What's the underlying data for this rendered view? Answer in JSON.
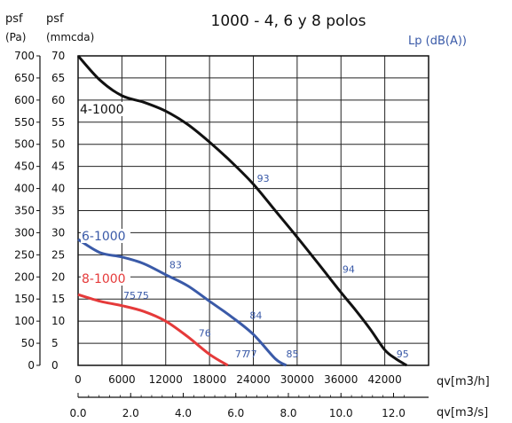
{
  "chart_data": {
    "type": "line",
    "title": "1000 - 4, 6 y 8 polos",
    "y_left_label_top": "psf",
    "y_left_unit": "(Pa)",
    "y_right_label_top": "psf",
    "y_right_unit": "(mmcda)",
    "noise_label": "Lp (dB(A))",
    "xlabel": "qv[m3/h]",
    "xlabel2": "qv[m3/s]",
    "x_ticks": [
      "0",
      "6000",
      "12000",
      "18000",
      "24000",
      "30000",
      "36000",
      "42000"
    ],
    "x_ticks2": [
      "0.0",
      "2.0",
      "4.0",
      "6.0",
      "8.0",
      "10.0",
      "12.0"
    ],
    "y_ticks_pa": [
      "0",
      "50",
      "100",
      "150",
      "200",
      "250",
      "300",
      "350",
      "400",
      "450",
      "500",
      "550",
      "600",
      "650",
      "700"
    ],
    "y_ticks_mm": [
      "0",
      "5",
      "10",
      "15",
      "20",
      "25",
      "30",
      "35",
      "40",
      "45",
      "50",
      "55",
      "60",
      "65",
      "70"
    ],
    "xlim": [
      0,
      48000
    ],
    "ylim": [
      0,
      700
    ],
    "grid": true,
    "series": [
      {
        "name": "4-1000",
        "color": "#111111",
        "x": [
          0,
          3000,
          6000,
          9000,
          12000,
          15000,
          18000,
          21000,
          24000,
          27000,
          30000,
          33000,
          36000,
          38000,
          40000,
          42000,
          43500,
          45000
        ],
        "y": [
          700,
          645,
          610,
          595,
          575,
          545,
          505,
          460,
          410,
          350,
          290,
          228,
          165,
          125,
          82,
          35,
          15,
          0
        ],
        "db_labels": [
          {
            "x": 24500,
            "y": 415,
            "text": "93"
          },
          {
            "x": 36200,
            "y": 210,
            "text": "94"
          },
          {
            "x": 43600,
            "y": 18,
            "text": "95"
          }
        ]
      },
      {
        "name": "6-1000",
        "color": "#3a5aa8",
        "x": [
          0,
          3000,
          6000,
          9000,
          12000,
          15000,
          18000,
          21000,
          24000,
          27000,
          28500
        ],
        "y": [
          285,
          255,
          245,
          230,
          205,
          180,
          145,
          110,
          70,
          15,
          0
        ],
        "db_labels": [
          {
            "x": 12500,
            "y": 220,
            "text": "83"
          },
          {
            "x": 23500,
            "y": 105,
            "text": "84"
          },
          {
            "x": 28500,
            "y": 18,
            "text": "85"
          }
        ]
      },
      {
        "name": "8-1000",
        "color": "#e53a3a",
        "x": [
          0,
          3000,
          6000,
          9000,
          12000,
          15000,
          18000,
          20500
        ],
        "y": [
          160,
          145,
          135,
          122,
          100,
          65,
          25,
          0
        ],
        "db_labels": [
          {
            "x": 6200,
            "y": 150,
            "text": "75"
          },
          {
            "x": 8000,
            "y": 150,
            "text": "75"
          },
          {
            "x": 16500,
            "y": 65,
            "text": "76"
          },
          {
            "x": 21500,
            "y": 18,
            "text": "77"
          },
          {
            "x": 22800,
            "y": 18,
            "text": "77"
          }
        ]
      }
    ]
  }
}
